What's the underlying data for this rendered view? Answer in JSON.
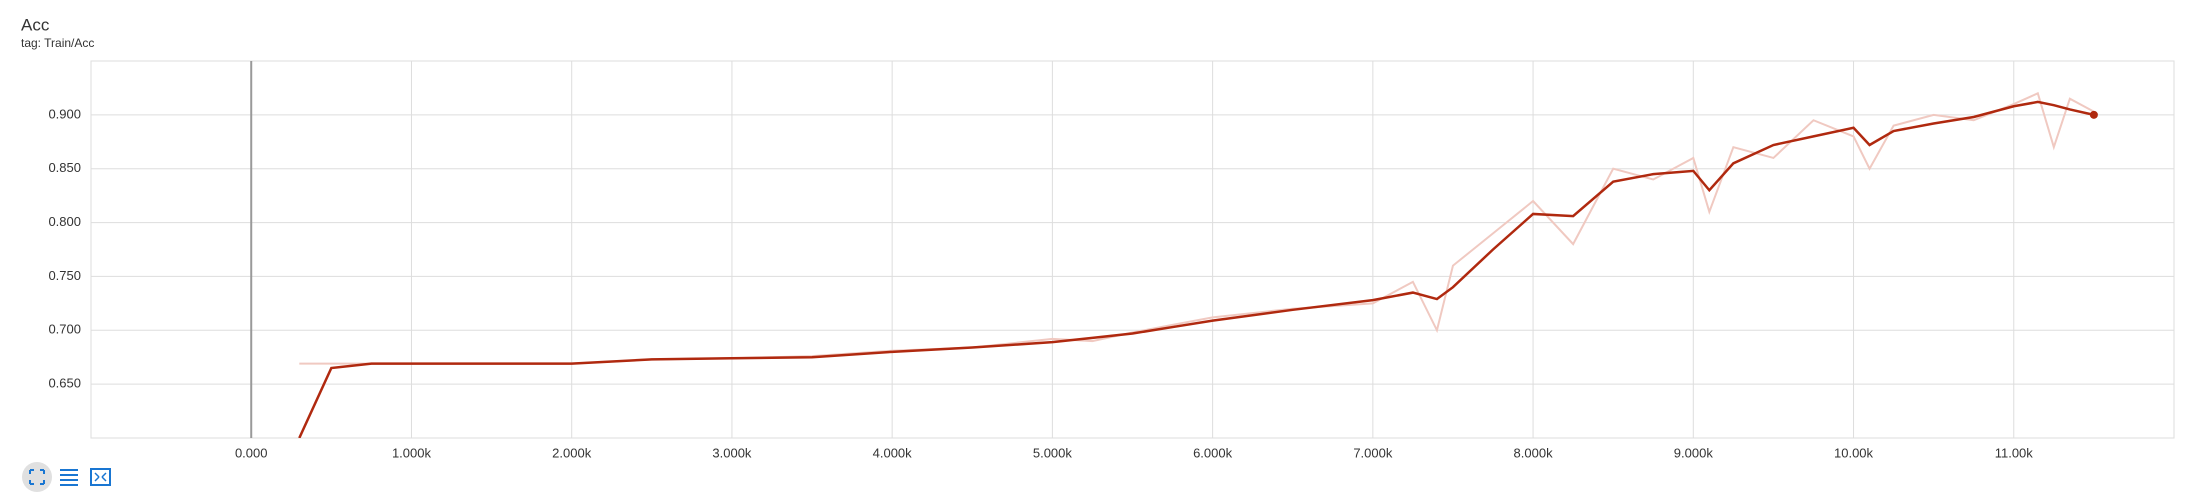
{
  "chart_data": {
    "type": "line",
    "title": "Acc",
    "subtitle": "tag: Train/Acc",
    "x": [
      300,
      500,
      750,
      1000,
      1500,
      2000,
      2500,
      3000,
      3500,
      4000,
      4500,
      5000,
      5250,
      5500,
      5750,
      6000,
      6500,
      7000,
      7250,
      7400,
      7500,
      7750,
      8000,
      8250,
      8500,
      8750,
      9000,
      9100,
      9250,
      9500,
      9750,
      10000,
      10100,
      10250,
      10500,
      10750,
      11000,
      11150,
      11250,
      11350,
      11500
    ],
    "series": [
      {
        "color": "#f0c9c1",
        "values": [
          0.669,
          0.669,
          0.669,
          0.669,
          0.669,
          0.669,
          0.673,
          0.674,
          0.676,
          0.681,
          0.684,
          0.692,
          0.69,
          0.698,
          0.705,
          0.712,
          0.72,
          0.725,
          0.745,
          0.7,
          0.76,
          0.79,
          0.82,
          0.78,
          0.85,
          0.84,
          0.86,
          0.81,
          0.87,
          0.86,
          0.895,
          0.88,
          0.85,
          0.89,
          0.9,
          0.895,
          0.91,
          0.92,
          0.87,
          0.915,
          0.903
        ]
      },
      {
        "color": "#b0290f",
        "values": [
          0.6,
          0.665,
          0.669,
          0.669,
          0.669,
          0.669,
          0.673,
          0.674,
          0.675,
          0.68,
          0.684,
          0.689,
          0.693,
          0.697,
          0.703,
          0.709,
          0.719,
          0.728,
          0.735,
          0.729,
          0.74,
          0.775,
          0.808,
          0.806,
          0.838,
          0.845,
          0.848,
          0.83,
          0.855,
          0.872,
          0.88,
          0.888,
          0.872,
          0.885,
          0.892,
          0.898,
          0.908,
          0.912,
          0.909,
          0.905,
          0.9
        ]
      }
    ],
    "xlim": [
      -1000,
      12000
    ],
    "ylim": [
      0.6,
      0.95
    ],
    "xticks": [
      {
        "value": 0,
        "label": "0.000"
      },
      {
        "value": 1000,
        "label": "1.000k"
      },
      {
        "value": 2000,
        "label": "2.000k"
      },
      {
        "value": 3000,
        "label": "3.000k"
      },
      {
        "value": 4000,
        "label": "4.000k"
      },
      {
        "value": 5000,
        "label": "5.000k"
      },
      {
        "value": 6000,
        "label": "6.000k"
      },
      {
        "value": 7000,
        "label": "7.000k"
      },
      {
        "value": 8000,
        "label": "8.000k"
      },
      {
        "value": 9000,
        "label": "9.000k"
      },
      {
        "value": 10000,
        "label": "10.00k"
      },
      {
        "value": 11000,
        "label": "11.00k"
      }
    ],
    "yticks": [
      {
        "value": 0.65,
        "label": "0.650"
      },
      {
        "value": 0.7,
        "label": "0.700"
      },
      {
        "value": 0.75,
        "label": "0.750"
      },
      {
        "value": 0.8,
        "label": "0.800"
      },
      {
        "value": 0.85,
        "label": "0.850"
      },
      {
        "value": 0.9,
        "label": "0.900"
      }
    ],
    "grid": true
  }
}
